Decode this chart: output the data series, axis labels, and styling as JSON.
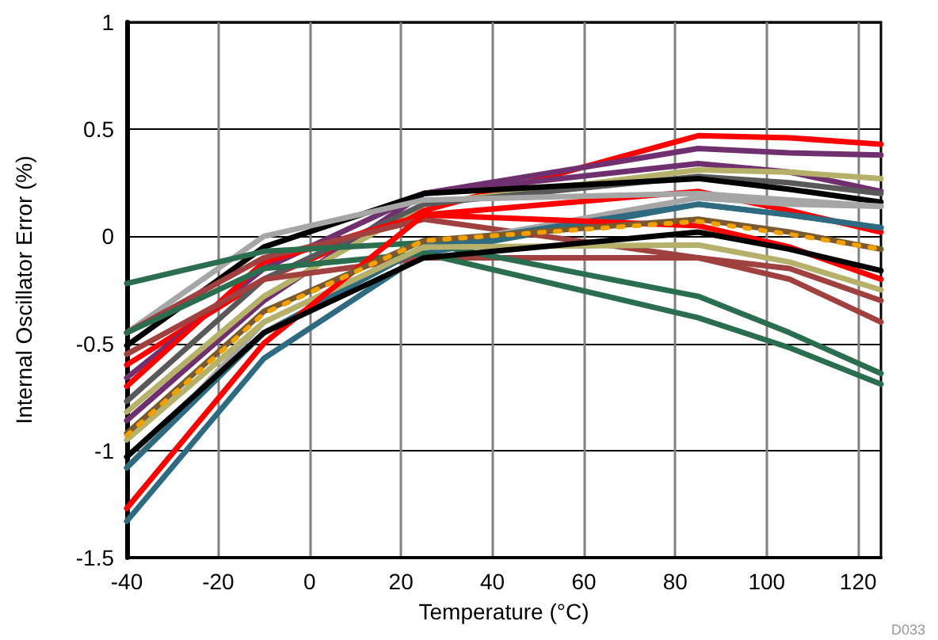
{
  "chart_data": {
    "type": "line",
    "xlabel": "Temperature (°C)",
    "ylabel": "Internal Oscillator Error (%)",
    "annotations": [
      "D033"
    ],
    "x": [
      -40,
      -10,
      25,
      85,
      105,
      125
    ],
    "xlim": [
      -40,
      125
    ],
    "xticks": [
      -40,
      -20,
      0,
      20,
      40,
      60,
      80,
      100,
      120
    ],
    "ylim": [
      -1.5,
      1
    ],
    "yticks": [
      -1.5,
      -1,
      -0.5,
      0,
      0.5,
      1
    ],
    "grid": true,
    "marker": "none",
    "line_style": "solid",
    "series": [
      {
        "color": "#ff0000",
        "values": [
          -0.6,
          -0.2,
          0.12,
          0.47,
          0.46,
          0.43
        ]
      },
      {
        "color": "#70306f",
        "values": [
          -0.86,
          -0.3,
          0.2,
          0.41,
          0.39,
          0.38
        ]
      },
      {
        "color": "#70306f",
        "values": [
          -0.66,
          -0.15,
          0.2,
          0.34,
          0.3,
          0.21
        ]
      },
      {
        "color": "#b5b06a",
        "values": [
          -0.82,
          -0.28,
          0.15,
          0.31,
          0.3,
          0.27
        ]
      },
      {
        "color": "#595959",
        "values": [
          -0.77,
          -0.2,
          0.15,
          0.28,
          0.25,
          0.2
        ]
      },
      {
        "color": "#000000",
        "values": [
          -0.51,
          -0.05,
          0.2,
          0.27,
          0.22,
          0.16
        ]
      },
      {
        "color": "#ff0000",
        "values": [
          -0.7,
          -0.12,
          0.1,
          0.21,
          0.12,
          0.02
        ]
      },
      {
        "color": "#a6a6a6",
        "values": [
          -0.45,
          0,
          0.17,
          0.2,
          0.17,
          0.14
        ]
      },
      {
        "color": "#2e6b80",
        "values": [
          -1.33,
          -0.57,
          -0.08,
          0.15,
          0.1,
          0.04
        ]
      },
      {
        "color": "#a0413f",
        "values": [
          -0.45,
          -0.1,
          0.08,
          -0.1,
          -0.2,
          -0.4
        ]
      },
      {
        "color": "#a0413f",
        "values": [
          -0.55,
          -0.2,
          -0.1,
          -0.1,
          -0.15,
          -0.3
        ]
      },
      {
        "color": "#2a6e4f",
        "values": [
          -0.22,
          -0.07,
          -0.03,
          -0.28,
          -0.45,
          -0.64
        ]
      },
      {
        "color": "#2a6e4f",
        "values": [
          -0.45,
          -0.15,
          -0.08,
          -0.38,
          -0.52,
          -0.69
        ]
      },
      {
        "color": "#a6a6a6",
        "values": [
          -1.08,
          -0.4,
          -0.05,
          0.18,
          0.15,
          0.14
        ]
      },
      {
        "color": "#2e6b80",
        "values": [
          -1.08,
          -0.45,
          -0.05,
          0.15,
          0.1,
          0.04
        ]
      },
      {
        "color": "#b5b06a",
        "values": [
          -0.95,
          -0.4,
          -0.05,
          -0.04,
          -0.12,
          -0.25
        ]
      },
      {
        "color": "#ff0000",
        "values": [
          -1.27,
          -0.5,
          0.1,
          0.05,
          -0.05,
          -0.2
        ]
      },
      {
        "color": "#000000",
        "values": [
          -1.03,
          -0.45,
          -0.1,
          0.02,
          -0.06,
          -0.16
        ]
      },
      {
        "color": "#7a5a2e",
        "values": [
          -0.92,
          -0.35,
          -0.02,
          0.08,
          0.02,
          -0.06
        ]
      },
      {
        "color": "#f0a000",
        "line_style": "dotted",
        "values": [
          -0.93,
          -0.36,
          -0.02,
          0.07,
          0.01,
          -0.06
        ]
      }
    ]
  }
}
